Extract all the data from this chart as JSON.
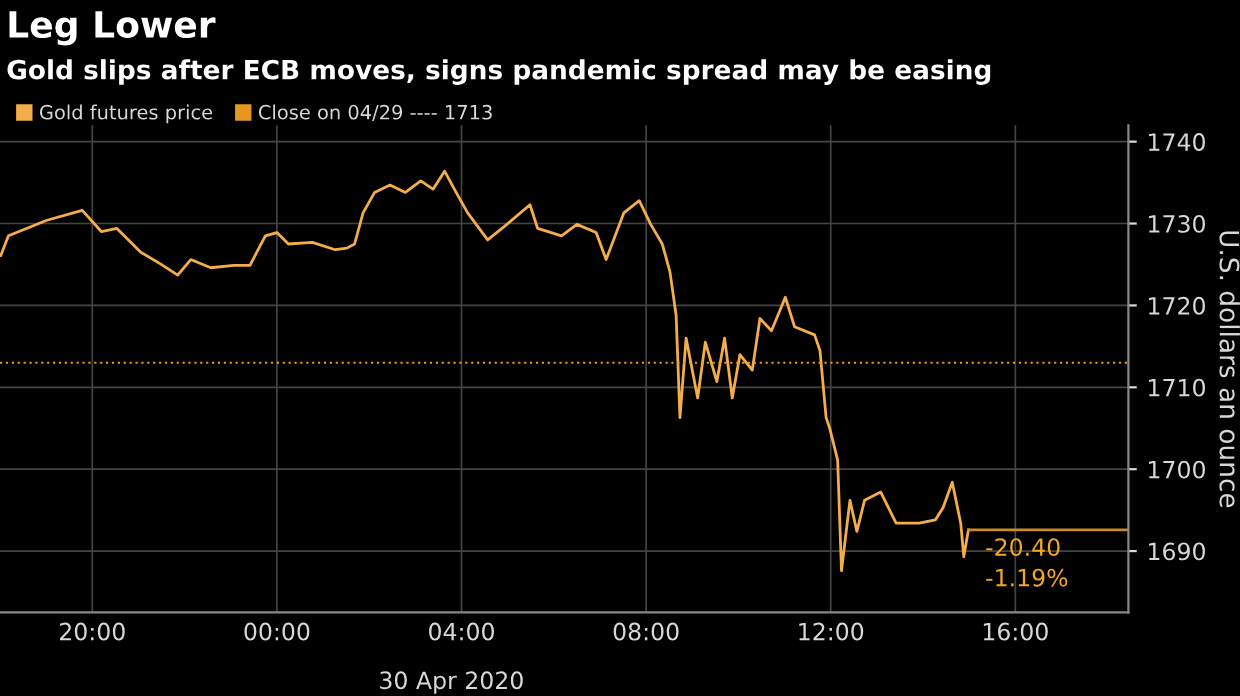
{
  "chart_data": {
    "type": "line",
    "title": "Leg Lower",
    "subtitle": "Gold slips after ECB moves, signs pandemic spread may be easing",
    "xlabel": "30 Apr 2020",
    "ylabel": "U.S. dollars an ounce",
    "xlim": [
      "2020-04-29T18:00",
      "2020-04-30T18:27"
    ],
    "ylim": [
      1682.5,
      1742
    ],
    "xticks": [
      {
        "value": "2020-04-29T20:00",
        "label": "20:00"
      },
      {
        "value": "2020-04-30T00:00",
        "label": "00:00"
      },
      {
        "value": "2020-04-30T04:00",
        "label": "04:00"
      },
      {
        "value": "2020-04-30T08:00",
        "label": "08:00"
      },
      {
        "value": "2020-04-30T12:00",
        "label": "12:00"
      },
      {
        "value": "2020-04-30T16:00",
        "label": "16:00"
      }
    ],
    "yticks": [
      1690,
      1700,
      1710,
      1720,
      1730,
      1740
    ],
    "grid": true,
    "legend": "top left",
    "marker": "none",
    "line_style": "solid",
    "series": [
      {
        "name": "Gold futures price",
        "color": "#f5ad4a",
        "x": [
          "2020-04-29T18:01",
          "2020-04-29T18:11",
          "2020-04-29T19:01",
          "2020-04-29T19:47",
          "2020-04-29T20:12",
          "2020-04-29T20:32",
          "2020-04-29T21:03",
          "2020-04-29T21:28",
          "2020-04-29T21:51",
          "2020-04-29T22:08",
          "2020-04-29T22:34",
          "2020-04-29T23:04",
          "2020-04-29T23:25",
          "2020-04-29T23:45",
          "2020-04-30T00:00",
          "2020-04-30T00:15",
          "2020-04-30T00:46",
          "2020-04-30T01:16",
          "2020-04-30T01:31",
          "2020-04-30T01:41",
          "2020-04-30T01:52",
          "2020-04-30T02:07",
          "2020-04-30T02:27",
          "2020-04-30T02:47",
          "2020-04-30T03:07",
          "2020-04-30T03:23",
          "2020-04-30T03:38",
          "2020-04-30T03:53",
          "2020-04-30T04:08",
          "2020-04-30T04:34",
          "2020-04-30T04:59",
          "2020-04-30T05:29",
          "2020-04-30T05:39",
          "2020-04-30T06:10",
          "2020-04-30T06:30",
          "2020-04-30T06:55",
          "2020-04-30T07:08",
          "2020-04-30T07:31",
          "2020-04-30T07:51",
          "2020-04-30T08:06",
          "2020-04-30T08:21",
          "2020-04-30T08:31",
          "2020-04-30T08:39",
          "2020-04-30T08:44",
          "2020-04-30T08:52",
          "2020-04-30T09:07",
          "2020-04-30T09:17",
          "2020-04-30T09:32",
          "2020-04-30T09:42",
          "2020-04-30T09:52",
          "2020-04-30T10:02",
          "2020-04-30T10:18",
          "2020-04-30T10:28",
          "2020-04-30T10:43",
          "2020-04-30T11:01",
          "2020-04-30T11:13",
          "2020-04-30T11:39",
          "2020-04-30T11:46",
          "2020-04-30T11:54",
          "2020-04-30T11:59",
          "2020-04-30T12:09",
          "2020-04-30T12:14",
          "2020-04-30T12:25",
          "2020-04-30T12:34",
          "2020-04-30T12:44",
          "2020-04-30T13:05",
          "2020-04-30T13:25",
          "2020-04-30T13:55",
          "2020-04-30T14:16",
          "2020-04-30T14:26",
          "2020-04-30T14:38",
          "2020-04-30T14:49",
          "2020-04-30T14:53",
          "2020-04-30T14:59"
        ],
        "values": [
          1726.1,
          1728.5,
          1730.4,
          1731.6,
          1729,
          1729.4,
          1726.5,
          1725.1,
          1723.7,
          1725.6,
          1724.6,
          1724.9,
          1724.9,
          1728.5,
          1728.9,
          1727.5,
          1727.7,
          1726.8,
          1727,
          1727.5,
          1731.3,
          1733.8,
          1734.7,
          1733.8,
          1735.2,
          1734.2,
          1736.4,
          1733.8,
          1731.3,
          1728,
          1729.9,
          1732.3,
          1729.4,
          1728.5,
          1729.9,
          1728.9,
          1725.6,
          1731.3,
          1732.8,
          1729.9,
          1727.5,
          1724.1,
          1718.8,
          1706.3,
          1716,
          1708.7,
          1715.5,
          1710.7,
          1716,
          1708.7,
          1714,
          1712.1,
          1718.4,
          1716.9,
          1721,
          1717.4,
          1716.4,
          1714.5,
          1706.3,
          1704.9,
          1701.1,
          1687.6,
          1696.2,
          1692.4,
          1696.2,
          1697.2,
          1693.4,
          1693.4,
          1693.8,
          1695.3,
          1698.4,
          1693.4,
          1689.3,
          1692.6
        ]
      },
      {
        "color": "#c98a2e",
        "x": [
          "2020-04-30T14:59",
          "2020-04-30T18:27"
        ],
        "values": [
          1692.6,
          1692.6
        ]
      }
    ],
    "ref_lines": [
      {
        "axis": "y",
        "value": 1713,
        "label": "Close on 04/29 ---- 1713",
        "color": "#e8961e",
        "line_style": "dotted"
      }
    ],
    "annotations": [
      {
        "text": "-20.40",
        "x": "2020-04-30T14:59",
        "y": 1692.6
      },
      {
        "text": "-1.19%",
        "x": "2020-04-30T14:59",
        "y": 1692.6
      }
    ]
  }
}
